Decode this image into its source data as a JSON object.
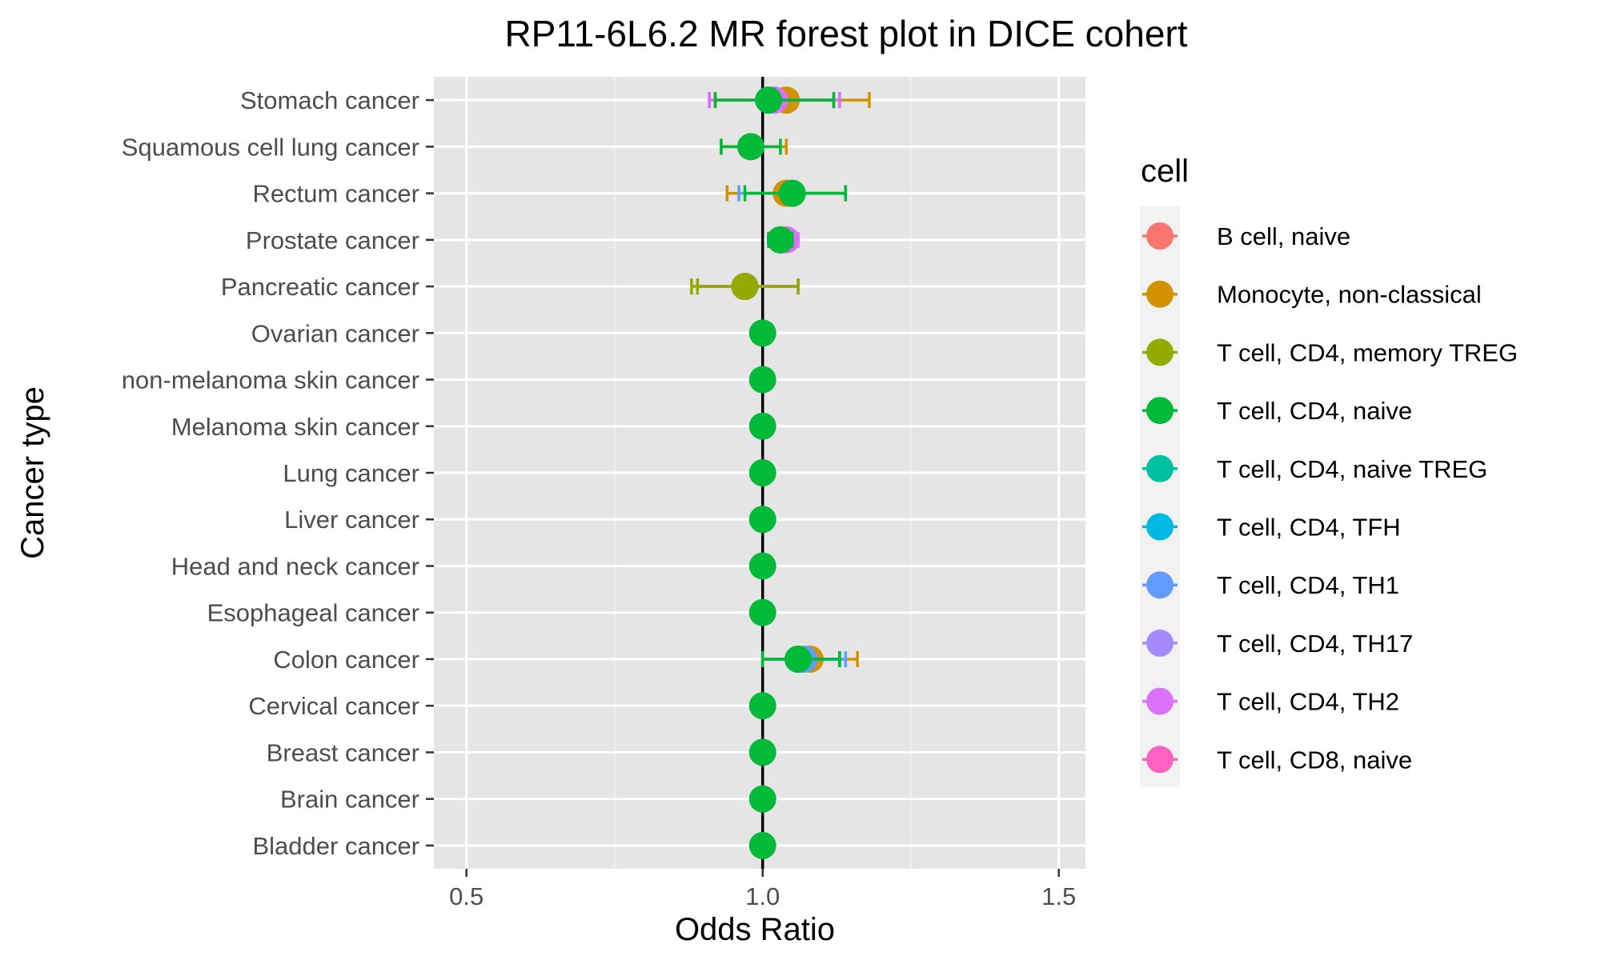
{
  "chart_data": {
    "type": "scatter",
    "subtype": "forest",
    "title": "RP11-6L6.2 MR forest plot in DICE cohert",
    "xlabel": "Odds Ratio",
    "ylabel": "Cancer type",
    "xlim": [
      0.445,
      1.545
    ],
    "xticks": [
      0.5,
      1.0,
      1.5
    ],
    "xtick_labels": [
      "0.5",
      "1.0",
      "1.5"
    ],
    "reference_line": 1.0,
    "grid": true,
    "legend_position": "right",
    "legend_title": "cell",
    "categories": [
      "Stomach cancer",
      "Squamous cell lung cancer",
      "Rectum cancer",
      "Prostate cancer",
      "Pancreatic cancer",
      "Ovarian cancer",
      "non-melanoma skin cancer",
      "Melanoma skin cancer",
      "Lung cancer",
      "Liver cancer",
      "Head and neck cancer",
      "Esophageal cancer",
      "Colon cancer",
      "Cervical cancer",
      "Breast cancer",
      "Brain cancer",
      "Bladder cancer"
    ],
    "series": [
      {
        "name": "B cell, naive",
        "color": "#F8766D",
        "points": [
          {
            "y": "Stomach cancer",
            "or": 1.02,
            "lo": 0.92,
            "hi": 1.13
          },
          {
            "y": "Rectum cancer",
            "or": 1.04,
            "lo": 0.96,
            "hi": 1.14
          }
        ]
      },
      {
        "name": "Monocyte, non-classical",
        "color": "#D39200",
        "points": [
          {
            "y": "Stomach cancer",
            "or": 1.04,
            "lo": 0.92,
            "hi": 1.18
          },
          {
            "y": "Squamous cell lung cancer",
            "or": 0.98,
            "lo": 0.93,
            "hi": 1.04
          },
          {
            "y": "Rectum cancer",
            "or": 1.04,
            "lo": 0.94,
            "hi": 1.14
          },
          {
            "y": "Colon cancer",
            "or": 1.08,
            "lo": 1.0,
            "hi": 1.16
          }
        ]
      },
      {
        "name": "T cell, CD4, memory TREG",
        "color": "#93AA00",
        "points": [
          {
            "y": "Pancreatic cancer",
            "or": 0.97,
            "lo": 0.88,
            "hi": 1.06
          }
        ]
      },
      {
        "name": "T cell, CD4, naive",
        "color": "#00BA38",
        "points": [
          {
            "y": "Ovarian cancer",
            "or": 1.0,
            "lo": 1.0,
            "hi": 1.0
          },
          {
            "y": "non-melanoma skin cancer",
            "or": 1.0,
            "lo": 1.0,
            "hi": 1.0
          },
          {
            "y": "Melanoma skin cancer",
            "or": 1.0,
            "lo": 1.0,
            "hi": 1.0
          },
          {
            "y": "Lung cancer",
            "or": 1.0,
            "lo": 1.0,
            "hi": 1.0
          },
          {
            "y": "Liver cancer",
            "or": 1.0,
            "lo": 1.0,
            "hi": 1.0
          },
          {
            "y": "Head and neck cancer",
            "or": 1.0,
            "lo": 1.0,
            "hi": 1.0
          },
          {
            "y": "Esophageal cancer",
            "or": 1.0,
            "lo": 1.0,
            "hi": 1.0
          },
          {
            "y": "Cervical cancer",
            "or": 1.0,
            "lo": 1.0,
            "hi": 1.0
          },
          {
            "y": "Breast cancer",
            "or": 1.0,
            "lo": 1.0,
            "hi": 1.0
          },
          {
            "y": "Brain cancer",
            "or": 1.0,
            "lo": 1.0,
            "hi": 1.0
          },
          {
            "y": "Bladder cancer",
            "or": 1.0,
            "lo": 1.0,
            "hi": 1.0
          }
        ]
      },
      {
        "name": "T cell, CD4, naive TREG",
        "color": "#00C19F",
        "points": [
          {
            "y": "Colon cancer",
            "or": 1.06,
            "lo": 1.0,
            "hi": 1.13
          }
        ]
      },
      {
        "name": "T cell, CD4, TFH",
        "color": "#00B9E3",
        "points": [
          {
            "y": "Colon cancer",
            "or": 1.06,
            "lo": 1.0,
            "hi": 1.13
          }
        ]
      },
      {
        "name": "T cell, CD4, TH1",
        "color": "#619CFF",
        "points": [
          {
            "y": "Stomach cancer",
            "or": 1.02,
            "lo": 0.91,
            "hi": 1.12
          },
          {
            "y": "Rectum cancer",
            "or": 1.05,
            "lo": 0.96,
            "hi": 1.14
          },
          {
            "y": "Colon cancer",
            "or": 1.07,
            "lo": 1.0,
            "hi": 1.14
          }
        ]
      },
      {
        "name": "T cell, CD4, TH17",
        "color": "#A58AFF",
        "points": [
          {
            "y": "Stomach cancer",
            "or": 1.01,
            "lo": 0.91,
            "hi": 1.12
          },
          {
            "y": "Pancreatic cancer",
            "or": 0.97,
            "lo": 0.89,
            "hi": 1.06
          }
        ]
      },
      {
        "name": "T cell, CD4, TH2",
        "color": "#DB72FB",
        "points": [
          {
            "y": "Stomach cancer",
            "or": 1.02,
            "lo": 0.91,
            "hi": 1.13
          },
          {
            "y": "Prostate cancer",
            "or": 1.04,
            "lo": 1.01,
            "hi": 1.06
          },
          {
            "y": "Pancreatic cancer",
            "or": 0.97,
            "lo": 0.89,
            "hi": 1.06
          }
        ]
      },
      {
        "name": "T cell, CD8, naive",
        "color": "#FF61C3",
        "points": [
          {
            "y": "Prostate cancer",
            "or": 1.03,
            "lo": 1.01,
            "hi": 1.05
          }
        ]
      }
    ]
  },
  "overlay_points": [
    {
      "y": "Stomach cancer",
      "or": 1.01,
      "lo": 0.92,
      "hi": 1.12,
      "color": "#00BA38"
    },
    {
      "y": "Squamous cell lung cancer",
      "or": 0.98,
      "lo": 0.93,
      "hi": 1.03,
      "color": "#00BA38"
    },
    {
      "y": "Rectum cancer",
      "or": 1.05,
      "lo": 0.97,
      "hi": 1.14,
      "color": "#00BA38"
    },
    {
      "y": "Prostate cancer",
      "or": 1.03,
      "lo": 1.01,
      "hi": 1.05,
      "color": "#00BA38"
    },
    {
      "y": "Pancreatic cancer",
      "or": 0.97,
      "lo": 0.89,
      "hi": 1.06,
      "color": "#93AA00"
    },
    {
      "y": "Colon cancer",
      "or": 1.06,
      "lo": 1.0,
      "hi": 1.13,
      "color": "#00BA38"
    }
  ]
}
